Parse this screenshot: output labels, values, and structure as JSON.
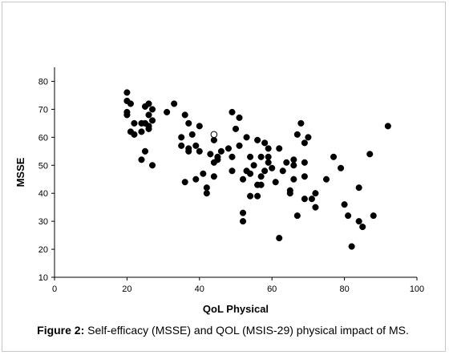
{
  "caption": {
    "label": "Figure 2:",
    "text": " Self-efficacy (MSSE) and QOL (MSIS-29) physical impact of MS."
  },
  "colors": {
    "marker": "#000000",
    "axis": "#000000",
    "frame": "#c8c8c8"
  },
  "chart_data": {
    "type": "scatter",
    "title": "",
    "xlabel": "QoL Physical",
    "ylabel": "MSSE",
    "xlim": [
      0,
      100
    ],
    "ylim": [
      10,
      85
    ],
    "xticks": [
      0,
      20,
      40,
      60,
      80,
      100
    ],
    "yticks": [
      10,
      20,
      30,
      40,
      50,
      60,
      70,
      80
    ],
    "grid": false,
    "legend": "none",
    "series": [
      {
        "marker": "filled-circle",
        "points": [
          [
            20,
            76
          ],
          [
            20,
            73
          ],
          [
            21,
            72
          ],
          [
            20,
            69
          ],
          [
            20,
            68
          ],
          [
            21,
            62
          ],
          [
            22,
            61
          ],
          [
            22,
            65
          ],
          [
            24,
            65
          ],
          [
            24,
            62
          ],
          [
            25,
            65
          ],
          [
            25,
            71
          ],
          [
            26,
            72
          ],
          [
            26,
            68
          ],
          [
            26,
            63
          ],
          [
            27,
            70
          ],
          [
            27,
            66
          ],
          [
            26,
            64
          ],
          [
            25,
            55
          ],
          [
            24,
            52
          ],
          [
            27,
            50
          ],
          [
            31,
            69
          ],
          [
            33,
            72
          ],
          [
            35,
            57
          ],
          [
            35,
            60
          ],
          [
            36,
            68
          ],
          [
            36,
            44
          ],
          [
            37,
            65
          ],
          [
            37,
            56
          ],
          [
            37,
            55
          ],
          [
            38,
            61
          ],
          [
            39,
            57
          ],
          [
            39,
            45
          ],
          [
            40,
            64
          ],
          [
            40,
            55
          ],
          [
            41,
            47
          ],
          [
            42,
            42
          ],
          [
            42,
            40
          ],
          [
            43,
            54
          ],
          [
            44,
            51
          ],
          [
            44,
            46
          ],
          [
            44,
            59
          ],
          [
            45,
            53
          ],
          [
            45,
            52
          ],
          [
            46,
            55
          ],
          [
            48,
            56
          ],
          [
            49,
            53
          ],
          [
            49,
            48
          ],
          [
            49,
            69
          ],
          [
            50,
            63
          ],
          [
            51,
            67
          ],
          [
            51,
            57
          ],
          [
            52,
            45
          ],
          [
            52,
            33
          ],
          [
            52,
            30
          ],
          [
            53,
            60
          ],
          [
            53,
            48
          ],
          [
            54,
            53
          ],
          [
            54,
            47
          ],
          [
            54,
            39
          ],
          [
            55,
            50
          ],
          [
            56,
            59
          ],
          [
            56,
            39
          ],
          [
            56,
            43
          ],
          [
            57,
            53
          ],
          [
            57,
            46
          ],
          [
            57,
            43
          ],
          [
            58,
            58
          ],
          [
            58,
            48
          ],
          [
            59,
            56
          ],
          [
            59,
            53
          ],
          [
            59,
            51
          ],
          [
            60,
            49
          ],
          [
            61,
            44
          ],
          [
            62,
            24
          ],
          [
            62,
            56
          ],
          [
            63,
            48
          ],
          [
            64,
            51
          ],
          [
            65,
            41
          ],
          [
            65,
            40
          ],
          [
            66,
            52
          ],
          [
            66,
            50
          ],
          [
            66,
            45
          ],
          [
            67,
            61
          ],
          [
            67,
            32
          ],
          [
            68,
            65
          ],
          [
            69,
            58
          ],
          [
            69,
            51
          ],
          [
            69,
            46
          ],
          [
            69,
            38
          ],
          [
            70,
            60
          ],
          [
            71,
            38
          ],
          [
            72,
            40
          ],
          [
            72,
            35
          ],
          [
            75,
            45
          ],
          [
            77,
            53
          ],
          [
            79,
            49
          ],
          [
            80,
            36
          ],
          [
            81,
            32
          ],
          [
            82,
            21
          ],
          [
            84,
            42
          ],
          [
            84,
            30
          ],
          [
            85,
            28
          ],
          [
            87,
            54
          ],
          [
            88,
            32
          ],
          [
            92,
            64
          ]
        ]
      },
      {
        "marker": "open-circle",
        "points": [
          [
            44,
            61
          ]
        ]
      }
    ]
  }
}
